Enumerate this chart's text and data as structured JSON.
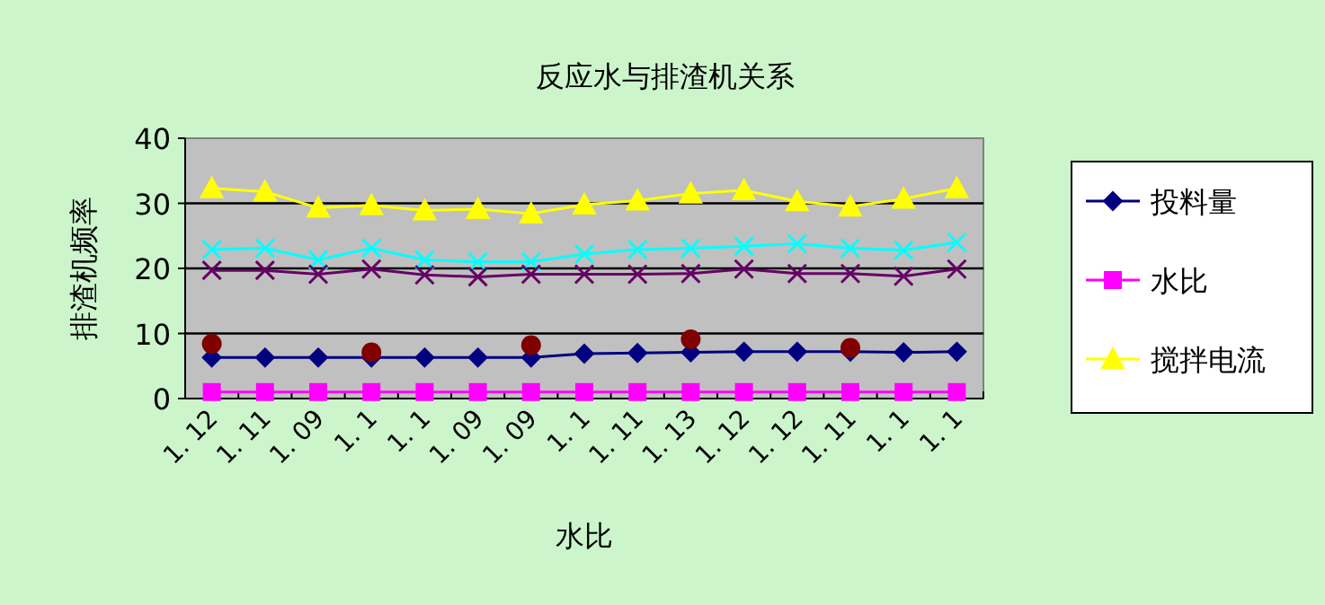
{
  "chart_data": {
    "type": "line",
    "title": "反应水与排渣机关系",
    "xlabel": "水比",
    "ylabel": "排渣机频率",
    "categories": [
      "1. 12",
      "1. 11",
      "1. 09",
      "1. 1",
      "1. 1",
      "1. 09",
      "1. 09",
      "1. 1",
      "1. 11",
      "1. 13",
      "1. 12",
      "1. 12",
      "1. 11",
      "1. 1",
      "1. 1"
    ],
    "ylim": [
      0,
      40
    ],
    "yticks": [
      0,
      10,
      20,
      30,
      40
    ],
    "grid": "y",
    "legend": "right",
    "series": [
      {
        "name": "投料量",
        "color": "#000080",
        "marker": "diamond",
        "values": [
          6.3,
          6.3,
          6.3,
          6.3,
          6.3,
          6.3,
          6.3,
          6.9,
          7.0,
          7.1,
          7.2,
          7.2,
          7.2,
          7.1,
          7.2
        ]
      },
      {
        "name": "水比",
        "color": "#ff00ff",
        "marker": "square",
        "values": [
          1.0,
          1.0,
          1.0,
          1.0,
          1.0,
          1.0,
          1.0,
          1.0,
          1.0,
          1.0,
          1.0,
          1.0,
          1.0,
          1.0,
          1.0
        ]
      },
      {
        "name": "搅拌电流",
        "color": "#ffff00",
        "marker": "triangle",
        "values": [
          32.3,
          31.8,
          29.3,
          29.7,
          28.9,
          29.1,
          28.4,
          29.8,
          30.4,
          31.5,
          32.0,
          30.3,
          29.5,
          30.7,
          32.3
        ]
      },
      {
        "color": "#00ffff",
        "marker": "cross",
        "values": [
          22.9,
          23.1,
          21.3,
          23.1,
          21.3,
          21.0,
          21.0,
          22.2,
          22.9,
          23.1,
          23.4,
          23.8,
          23.1,
          22.8,
          24.0
        ]
      },
      {
        "color": "#660066",
        "marker": "cross",
        "values": [
          19.7,
          19.7,
          19.1,
          19.9,
          19.0,
          18.7,
          19.1,
          19.1,
          19.1,
          19.2,
          19.9,
          19.2,
          19.2,
          18.8,
          19.9
        ]
      },
      {
        "type": "scatter",
        "color": "#800000",
        "marker": "circle",
        "values": [
          8.4,
          null,
          null,
          7.1,
          null,
          null,
          8.2,
          null,
          null,
          9.1,
          null,
          null,
          7.8,
          null,
          null
        ]
      }
    ]
  }
}
